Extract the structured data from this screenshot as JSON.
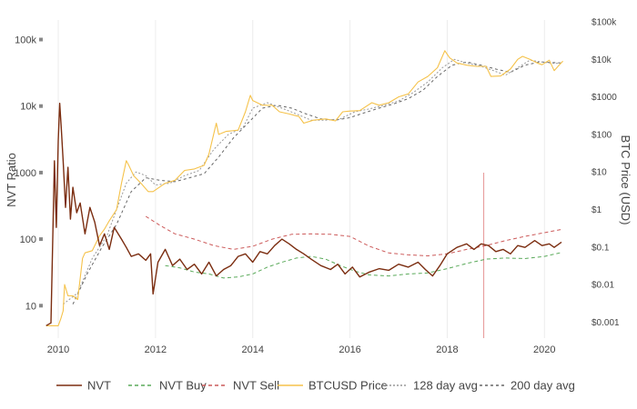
{
  "chart_data": {
    "type": "line",
    "title": "",
    "xlabel": "",
    "ylabel_left": "NVT Ratio",
    "ylabel_right": "BTC Price (USD)",
    "x_range": [
      2009.7,
      2020.5
    ],
    "x_ticks": [
      2010,
      2012,
      2014,
      2016,
      2018,
      2020
    ],
    "x_tick_labels": [
      "2010",
      "2012",
      "2014",
      "2016",
      "2018",
      "2020"
    ],
    "y_left_scale": "log",
    "y_left_ticks": [
      10,
      100,
      1000,
      10000,
      100000
    ],
    "y_left_tick_labels": [
      "10",
      "100",
      "1000",
      "10k",
      "100k"
    ],
    "y_right_scale": "log",
    "y_right_ticks": [
      0.001,
      0.01,
      0.1,
      1,
      10,
      100,
      1000,
      10000,
      100000
    ],
    "y_right_tick_labels": [
      "$0.001",
      "$0.01",
      "$0.1",
      "$1",
      "$10",
      "$100",
      "$1000",
      "$10k",
      "$100k"
    ],
    "grid": "vertical",
    "legend_position": "bottom",
    "marker": {
      "x": 2018.75,
      "color": "#e8a0a0"
    },
    "series": [
      {
        "name": "NVT",
        "axis": "left",
        "color": "#7b2d10",
        "dash": "solid",
        "width": 1.4,
        "points": [
          [
            2009.75,
            5
          ],
          [
            2009.85,
            5.5
          ],
          [
            2009.92,
            1500
          ],
          [
            2009.96,
            150
          ],
          [
            2010.0,
            3000
          ],
          [
            2010.03,
            11000
          ],
          [
            2010.06,
            5000
          ],
          [
            2010.1,
            1500
          ],
          [
            2010.15,
            300
          ],
          [
            2010.2,
            1200
          ],
          [
            2010.25,
            200
          ],
          [
            2010.3,
            600
          ],
          [
            2010.38,
            250
          ],
          [
            2010.45,
            350
          ],
          [
            2010.55,
            120
          ],
          [
            2010.65,
            300
          ],
          [
            2010.75,
            180
          ],
          [
            2010.85,
            80
          ],
          [
            2010.95,
            120
          ],
          [
            2011.05,
            70
          ],
          [
            2011.15,
            150
          ],
          [
            2011.3,
            100
          ],
          [
            2011.4,
            75
          ],
          [
            2011.5,
            55
          ],
          [
            2011.65,
            60
          ],
          [
            2011.8,
            48
          ],
          [
            2011.9,
            60
          ],
          [
            2011.95,
            15
          ],
          [
            2012.05,
            45
          ],
          [
            2012.2,
            70
          ],
          [
            2012.35,
            40
          ],
          [
            2012.5,
            50
          ],
          [
            2012.65,
            35
          ],
          [
            2012.8,
            42
          ],
          [
            2012.95,
            30
          ],
          [
            2013.1,
            45
          ],
          [
            2013.25,
            28
          ],
          [
            2013.4,
            35
          ],
          [
            2013.55,
            40
          ],
          [
            2013.7,
            55
          ],
          [
            2013.85,
            60
          ],
          [
            2014.0,
            45
          ],
          [
            2014.15,
            65
          ],
          [
            2014.3,
            60
          ],
          [
            2014.45,
            80
          ],
          [
            2014.6,
            100
          ],
          [
            2014.75,
            85
          ],
          [
            2014.9,
            70
          ],
          [
            2015.05,
            60
          ],
          [
            2015.2,
            50
          ],
          [
            2015.4,
            40
          ],
          [
            2015.6,
            35
          ],
          [
            2015.75,
            42
          ],
          [
            2015.9,
            30
          ],
          [
            2016.05,
            38
          ],
          [
            2016.2,
            27
          ],
          [
            2016.4,
            32
          ],
          [
            2016.6,
            36
          ],
          [
            2016.8,
            34
          ],
          [
            2017.0,
            42
          ],
          [
            2017.2,
            38
          ],
          [
            2017.4,
            45
          ],
          [
            2017.55,
            35
          ],
          [
            2017.7,
            28
          ],
          [
            2017.85,
            40
          ],
          [
            2018.0,
            60
          ],
          [
            2018.2,
            75
          ],
          [
            2018.4,
            85
          ],
          [
            2018.55,
            70
          ],
          [
            2018.7,
            85
          ],
          [
            2018.85,
            80
          ],
          [
            2019.0,
            65
          ],
          [
            2019.15,
            70
          ],
          [
            2019.3,
            60
          ],
          [
            2019.45,
            80
          ],
          [
            2019.6,
            75
          ],
          [
            2019.8,
            95
          ],
          [
            2019.95,
            80
          ],
          [
            2020.1,
            85
          ],
          [
            2020.2,
            75
          ],
          [
            2020.35,
            90
          ]
        ]
      },
      {
        "name": "NVT Buy",
        "axis": "left",
        "color": "#5aaa5a",
        "dash": "4,3",
        "width": 1,
        "points": [
          [
            2012.2,
            40
          ],
          [
            2012.5,
            37
          ],
          [
            2012.8,
            32
          ],
          [
            2013.1,
            30
          ],
          [
            2013.4,
            26
          ],
          [
            2013.7,
            27
          ],
          [
            2014.0,
            30
          ],
          [
            2014.3,
            38
          ],
          [
            2014.6,
            45
          ],
          [
            2014.9,
            52
          ],
          [
            2015.2,
            55
          ],
          [
            2015.5,
            50
          ],
          [
            2015.8,
            40
          ],
          [
            2016.1,
            33
          ],
          [
            2016.4,
            29
          ],
          [
            2016.8,
            28
          ],
          [
            2017.2,
            30
          ],
          [
            2017.6,
            31
          ],
          [
            2018.0,
            36
          ],
          [
            2018.4,
            43
          ],
          [
            2018.8,
            50
          ],
          [
            2019.2,
            52
          ],
          [
            2019.6,
            51
          ],
          [
            2020.0,
            55
          ],
          [
            2020.35,
            63
          ]
        ]
      },
      {
        "name": "NVT Sell",
        "axis": "left",
        "color": "#cc5a5a",
        "dash": "4,3",
        "width": 1,
        "points": [
          [
            2011.8,
            220
          ],
          [
            2012.1,
            160
          ],
          [
            2012.4,
            120
          ],
          [
            2012.8,
            100
          ],
          [
            2013.2,
            80
          ],
          [
            2013.6,
            70
          ],
          [
            2014.0,
            78
          ],
          [
            2014.4,
            100
          ],
          [
            2014.8,
            118
          ],
          [
            2015.2,
            120
          ],
          [
            2015.6,
            118
          ],
          [
            2016.0,
            110
          ],
          [
            2016.4,
            78
          ],
          [
            2016.8,
            62
          ],
          [
            2017.2,
            58
          ],
          [
            2017.6,
            56
          ],
          [
            2018.0,
            60
          ],
          [
            2018.4,
            70
          ],
          [
            2018.8,
            80
          ],
          [
            2019.2,
            95
          ],
          [
            2019.6,
            110
          ],
          [
            2020.0,
            125
          ],
          [
            2020.35,
            140
          ]
        ]
      },
      {
        "name": "BTCUSD Price",
        "axis": "right",
        "color": "#f5c24a",
        "dash": "solid",
        "width": 1.1,
        "points": [
          [
            2009.75,
            0.0008
          ],
          [
            2009.9,
            0.0008
          ],
          [
            2010.0,
            0.0008
          ],
          [
            2010.05,
            0.0012
          ],
          [
            2010.1,
            0.002
          ],
          [
            2010.13,
            0.01
          ],
          [
            2010.2,
            0.005
          ],
          [
            2010.3,
            0.005
          ],
          [
            2010.4,
            0.004
          ],
          [
            2010.5,
            0.05
          ],
          [
            2010.55,
            0.07
          ],
          [
            2010.7,
            0.08
          ],
          [
            2010.85,
            0.2
          ],
          [
            2010.95,
            0.3
          ],
          [
            2011.05,
            0.5
          ],
          [
            2011.2,
            1
          ],
          [
            2011.3,
            5
          ],
          [
            2011.4,
            20
          ],
          [
            2011.45,
            15
          ],
          [
            2011.55,
            8
          ],
          [
            2011.7,
            5
          ],
          [
            2011.85,
            3
          ],
          [
            2011.95,
            3
          ],
          [
            2012.2,
            5
          ],
          [
            2012.4,
            6
          ],
          [
            2012.6,
            11
          ],
          [
            2012.8,
            12
          ],
          [
            2013.0,
            15
          ],
          [
            2013.1,
            30
          ],
          [
            2013.25,
            200
          ],
          [
            2013.3,
            100
          ],
          [
            2013.45,
            120
          ],
          [
            2013.7,
            130
          ],
          [
            2013.85,
            400
          ],
          [
            2013.95,
            1100
          ],
          [
            2014.0,
            800
          ],
          [
            2014.2,
            600
          ],
          [
            2014.4,
            600
          ],
          [
            2014.55,
            400
          ],
          [
            2014.75,
            350
          ],
          [
            2014.95,
            300
          ],
          [
            2015.05,
            200
          ],
          [
            2015.25,
            240
          ],
          [
            2015.5,
            260
          ],
          [
            2015.7,
            230
          ],
          [
            2015.85,
            400
          ],
          [
            2016.0,
            420
          ],
          [
            2016.2,
            430
          ],
          [
            2016.45,
            700
          ],
          [
            2016.6,
            600
          ],
          [
            2016.8,
            700
          ],
          [
            2017.0,
            1000
          ],
          [
            2017.2,
            1200
          ],
          [
            2017.4,
            2500
          ],
          [
            2017.6,
            3500
          ],
          [
            2017.8,
            6000
          ],
          [
            2017.95,
            17000
          ],
          [
            2018.05,
            11000
          ],
          [
            2018.2,
            8000
          ],
          [
            2018.4,
            7000
          ],
          [
            2018.6,
            6500
          ],
          [
            2018.8,
            6500
          ],
          [
            2018.9,
            3500
          ],
          [
            2019.1,
            3600
          ],
          [
            2019.3,
            5500
          ],
          [
            2019.45,
            10000
          ],
          [
            2019.55,
            12000
          ],
          [
            2019.7,
            10000
          ],
          [
            2019.85,
            8000
          ],
          [
            2019.95,
            7200
          ],
          [
            2020.1,
            9500
          ],
          [
            2020.2,
            5000
          ],
          [
            2020.3,
            7000
          ],
          [
            2020.38,
            9000
          ]
        ]
      },
      {
        "name": "128 day avg",
        "axis": "right",
        "color": "#999999",
        "dash": "2,2",
        "width": 1,
        "points": [
          [
            2010.1,
            0.003
          ],
          [
            2010.4,
            0.006
          ],
          [
            2010.7,
            0.05
          ],
          [
            2011.0,
            0.2
          ],
          [
            2011.2,
            1
          ],
          [
            2011.4,
            5
          ],
          [
            2011.6,
            10
          ],
          [
            2011.8,
            8
          ],
          [
            2012.0,
            4.5
          ],
          [
            2012.3,
            5
          ],
          [
            2012.6,
            8
          ],
          [
            2012.9,
            11
          ],
          [
            2013.2,
            40
          ],
          [
            2013.5,
            100
          ],
          [
            2013.8,
            150
          ],
          [
            2014.0,
            500
          ],
          [
            2014.3,
            700
          ],
          [
            2014.6,
            500
          ],
          [
            2014.9,
            350
          ],
          [
            2015.2,
            240
          ],
          [
            2015.5,
            240
          ],
          [
            2015.8,
            260
          ],
          [
            2016.1,
            400
          ],
          [
            2016.4,
            480
          ],
          [
            2016.7,
            600
          ],
          [
            2017.0,
            780
          ],
          [
            2017.3,
            1300
          ],
          [
            2017.6,
            2500
          ],
          [
            2017.9,
            6000
          ],
          [
            2018.15,
            10000
          ],
          [
            2018.4,
            8000
          ],
          [
            2018.7,
            6500
          ],
          [
            2018.95,
            5000
          ],
          [
            2019.2,
            3800
          ],
          [
            2019.45,
            6000
          ],
          [
            2019.7,
            9500
          ],
          [
            2019.95,
            8500
          ],
          [
            2020.2,
            7800
          ],
          [
            2020.38,
            8000
          ]
        ]
      },
      {
        "name": "200 day avg",
        "axis": "right",
        "color": "#666666",
        "dash": "3,3",
        "width": 1,
        "points": [
          [
            2010.3,
            0.003
          ],
          [
            2010.6,
            0.02
          ],
          [
            2010.9,
            0.1
          ],
          [
            2011.2,
            0.4
          ],
          [
            2011.5,
            3
          ],
          [
            2011.8,
            7
          ],
          [
            2012.1,
            6
          ],
          [
            2012.4,
            5.5
          ],
          [
            2012.7,
            7
          ],
          [
            2013.0,
            9
          ],
          [
            2013.3,
            25
          ],
          [
            2013.6,
            80
          ],
          [
            2013.9,
            200
          ],
          [
            2014.2,
            500
          ],
          [
            2014.5,
            600
          ],
          [
            2014.8,
            500
          ],
          [
            2015.1,
            350
          ],
          [
            2015.4,
            260
          ],
          [
            2015.7,
            240
          ],
          [
            2016.0,
            280
          ],
          [
            2016.3,
            380
          ],
          [
            2016.6,
            500
          ],
          [
            2016.9,
            650
          ],
          [
            2017.2,
            900
          ],
          [
            2017.5,
            1500
          ],
          [
            2017.8,
            3500
          ],
          [
            2018.1,
            7000
          ],
          [
            2018.4,
            8500
          ],
          [
            2018.7,
            7000
          ],
          [
            2019.0,
            5500
          ],
          [
            2019.3,
            4500
          ],
          [
            2019.6,
            7000
          ],
          [
            2019.9,
            8500
          ],
          [
            2020.2,
            8200
          ],
          [
            2020.38,
            8000
          ]
        ]
      }
    ]
  }
}
